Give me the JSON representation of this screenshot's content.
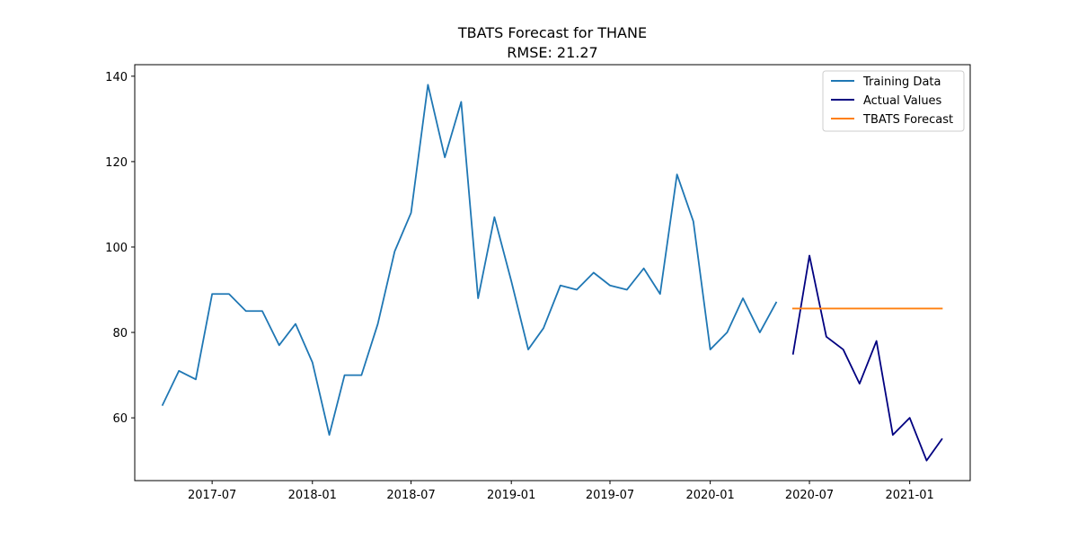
{
  "chart_data": {
    "type": "line",
    "title": "TBATS Forecast for THANE",
    "subtitle": "RMSE: 21.27",
    "xlabel": "",
    "ylabel": "",
    "xlim": [
      "2017-02-09",
      "2021-04-22"
    ],
    "ylim": [
      45.3,
      142.7
    ],
    "x_ticks": [
      "2017-07",
      "2018-01",
      "2018-07",
      "2019-01",
      "2019-07",
      "2020-01",
      "2020-07",
      "2021-01"
    ],
    "y_ticks": [
      60,
      80,
      100,
      120,
      140
    ],
    "grid": false,
    "legend": {
      "position": "top-right",
      "entries": [
        "Training Data",
        "Actual Values",
        "TBATS Forecast"
      ]
    },
    "series": [
      {
        "name": "Training Data",
        "color": "#1f77b4",
        "x": [
          "2017-04-01",
          "2017-05-01",
          "2017-06-01",
          "2017-07-01",
          "2017-08-01",
          "2017-09-01",
          "2017-10-01",
          "2017-11-01",
          "2017-12-01",
          "2018-01-01",
          "2018-02-01",
          "2018-03-01",
          "2018-04-01",
          "2018-05-01",
          "2018-06-01",
          "2018-07-01",
          "2018-08-01",
          "2018-09-01",
          "2018-10-01",
          "2018-11-01",
          "2018-12-01",
          "2019-01-01",
          "2019-02-01",
          "2019-03-01",
          "2019-04-01",
          "2019-05-01",
          "2019-06-01",
          "2019-07-01",
          "2019-08-01",
          "2019-09-01",
          "2019-10-01",
          "2019-11-01",
          "2019-12-01",
          "2020-01-01",
          "2020-02-01",
          "2020-03-01",
          "2020-04-01",
          "2020-05-01"
        ],
        "y": [
          63,
          71,
          69,
          89,
          89,
          85,
          85,
          77,
          82,
          73,
          56,
          70,
          70,
          82,
          99,
          108,
          138,
          121,
          134,
          88,
          107,
          92,
          76,
          81,
          91,
          90,
          94,
          91,
          90,
          95,
          89,
          117,
          106,
          76,
          80,
          88,
          80,
          87
        ]
      },
      {
        "name": "Actual Values",
        "color": "#000080",
        "x": [
          "2020-06-01",
          "2020-07-01",
          "2020-08-01",
          "2020-09-01",
          "2020-10-01",
          "2020-11-01",
          "2020-12-01",
          "2021-01-01",
          "2021-02-01",
          "2021-03-01"
        ],
        "y": [
          75,
          98,
          79,
          76,
          68,
          78,
          56,
          60,
          50,
          55
        ]
      },
      {
        "name": "TBATS Forecast",
        "color": "#ff7f0e",
        "x": [
          "2020-06-01",
          "2020-07-01",
          "2020-08-01",
          "2020-09-01",
          "2020-10-01",
          "2020-11-01",
          "2020-12-01",
          "2021-01-01",
          "2021-02-01",
          "2021-03-01"
        ],
        "y": [
          85.6,
          85.6,
          85.6,
          85.6,
          85.6,
          85.6,
          85.6,
          85.6,
          85.6,
          85.6
        ]
      }
    ]
  }
}
